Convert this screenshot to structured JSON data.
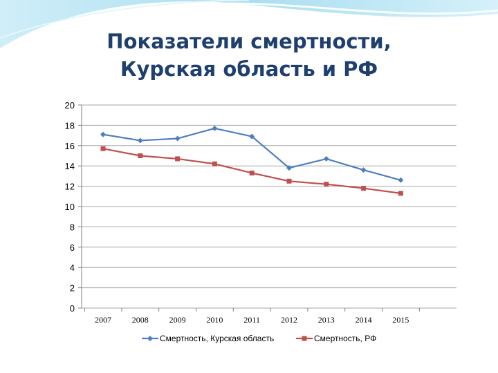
{
  "title": {
    "line1": "Показатели смертности,",
    "line2": "Курская область и РФ"
  },
  "colors": {
    "series1": "#4f7ec0",
    "series2": "#c0504d",
    "title": "#1f3f6e",
    "decor": "#8fd3ec"
  },
  "chart_data": {
    "type": "line",
    "categories": [
      "2007",
      "2008",
      "2009",
      "2010",
      "2011",
      "2012",
      "2013",
      "2014",
      "2015"
    ],
    "series": [
      {
        "name": "Смертность, Курская область",
        "marker": "diamond",
        "values": [
          17.1,
          16.5,
          16.7,
          17.7,
          16.9,
          13.8,
          14.7,
          13.6,
          12.6
        ]
      },
      {
        "name": "Смертность, РФ",
        "marker": "square",
        "values": [
          15.7,
          15.0,
          14.7,
          14.2,
          13.3,
          12.5,
          12.2,
          11.8,
          11.3
        ]
      }
    ],
    "ylim": [
      0,
      20
    ],
    "yticks": [
      "0",
      "2",
      "4",
      "6",
      "8",
      "10",
      "12",
      "14",
      "16",
      "18",
      "20"
    ],
    "grid": true,
    "legend": "bottom"
  }
}
